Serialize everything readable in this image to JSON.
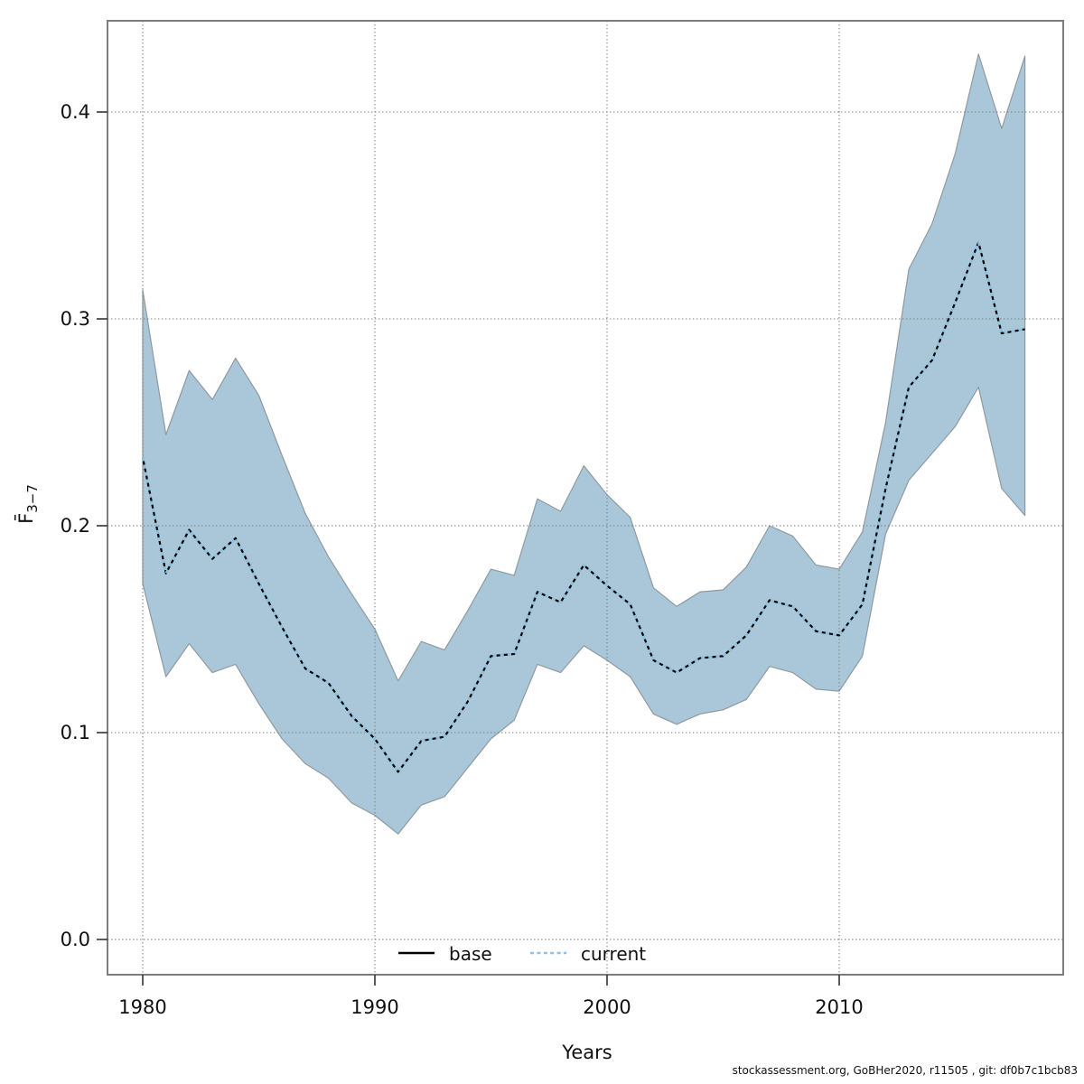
{
  "chart_data": {
    "type": "line",
    "title": "",
    "xlabel": "Years",
    "ylabel": "F̄3−7",
    "ylabel_main": "F̄",
    "ylabel_sub": "3−7",
    "x": [
      1980,
      1981,
      1982,
      1983,
      1984,
      1985,
      1986,
      1987,
      1988,
      1989,
      1990,
      1991,
      1992,
      1993,
      1994,
      1995,
      1996,
      1997,
      1998,
      1999,
      2000,
      2001,
      2002,
      2003,
      2004,
      2005,
      2006,
      2007,
      2008,
      2009,
      2010,
      2011,
      2012,
      2013,
      2014,
      2015,
      2016,
      2017,
      2018
    ],
    "series": [
      {
        "name": "base",
        "style": "solid",
        "color": "#000000",
        "values": [
          0.233,
          0.177,
          0.198,
          0.184,
          0.194,
          0.172,
          0.151,
          0.131,
          0.124,
          0.108,
          0.097,
          0.081,
          0.096,
          0.098,
          0.115,
          0.137,
          0.138,
          0.168,
          0.163,
          0.181,
          0.171,
          0.162,
          0.135,
          0.129,
          0.136,
          0.137,
          0.147,
          0.164,
          0.161,
          0.149,
          0.147,
          0.162,
          0.218,
          0.267,
          0.28,
          0.308,
          0.337,
          0.293,
          0.295
        ]
      },
      {
        "name": "current",
        "style": "dotted",
        "color": "#8cc3e1",
        "values": [
          0.233,
          0.177,
          0.198,
          0.184,
          0.194,
          0.172,
          0.151,
          0.131,
          0.124,
          0.108,
          0.097,
          0.081,
          0.096,
          0.098,
          0.115,
          0.137,
          0.138,
          0.168,
          0.163,
          0.181,
          0.171,
          0.162,
          0.135,
          0.129,
          0.136,
          0.137,
          0.147,
          0.164,
          0.161,
          0.149,
          0.147,
          0.162,
          0.218,
          0.267,
          0.28,
          0.308,
          0.337,
          0.293,
          0.295
        ]
      }
    ],
    "band": {
      "name": "confidence-band",
      "color": "#a9c7d8",
      "edge_color": "#8f9aa0",
      "lower": [
        0.172,
        0.127,
        0.143,
        0.129,
        0.133,
        0.114,
        0.097,
        0.085,
        0.078,
        0.066,
        0.06,
        0.051,
        0.065,
        0.069,
        0.083,
        0.097,
        0.106,
        0.133,
        0.129,
        0.142,
        0.135,
        0.127,
        0.109,
        0.104,
        0.109,
        0.111,
        0.116,
        0.132,
        0.129,
        0.121,
        0.12,
        0.137,
        0.196,
        0.222,
        0.235,
        0.248,
        0.267,
        0.218,
        0.205
      ],
      "upper": [
        0.314,
        0.244,
        0.275,
        0.261,
        0.281,
        0.263,
        0.234,
        0.206,
        0.185,
        0.167,
        0.15,
        0.125,
        0.144,
        0.14,
        0.159,
        0.179,
        0.176,
        0.213,
        0.207,
        0.229,
        0.215,
        0.204,
        0.17,
        0.161,
        0.168,
        0.169,
        0.18,
        0.2,
        0.195,
        0.181,
        0.179,
        0.197,
        0.25,
        0.324,
        0.346,
        0.38,
        0.428,
        0.392,
        0.427
      ]
    },
    "xticks": [
      1980,
      1990,
      2000,
      2010
    ],
    "yticks": [
      {
        "value": 0.0,
        "label": "0.0"
      },
      {
        "value": 0.1,
        "label": "0.1"
      },
      {
        "value": 0.2,
        "label": "0.2"
      },
      {
        "value": 0.3,
        "label": "0.3"
      },
      {
        "value": 0.4,
        "label": "0.4"
      }
    ],
    "xlim": [
      1978.5,
      2019.6
    ],
    "ylim": [
      -0.017,
      0.444
    ],
    "grid": true,
    "legend": {
      "position": "bottom-center",
      "entries": [
        {
          "label": "base",
          "style": "solid",
          "color": "#000000"
        },
        {
          "label": "current",
          "style": "dotted",
          "color": "#8cc3e1"
        }
      ]
    }
  },
  "legend": {
    "base_label": "base",
    "current_label": "current"
  },
  "footer": {
    "credit": "stockassessment.org, GoBHer2020, r11505 , git: df0b7c1bcb83"
  },
  "colors": {
    "band_fill": "#a9c7d8",
    "band_edge": "#8f9aa0",
    "base_line": "#000000",
    "current_line": "#8cc3e1",
    "grid": "#7a7a7a",
    "frame": "#7d7d7d",
    "tick": "#333333",
    "text": "#111111"
  }
}
